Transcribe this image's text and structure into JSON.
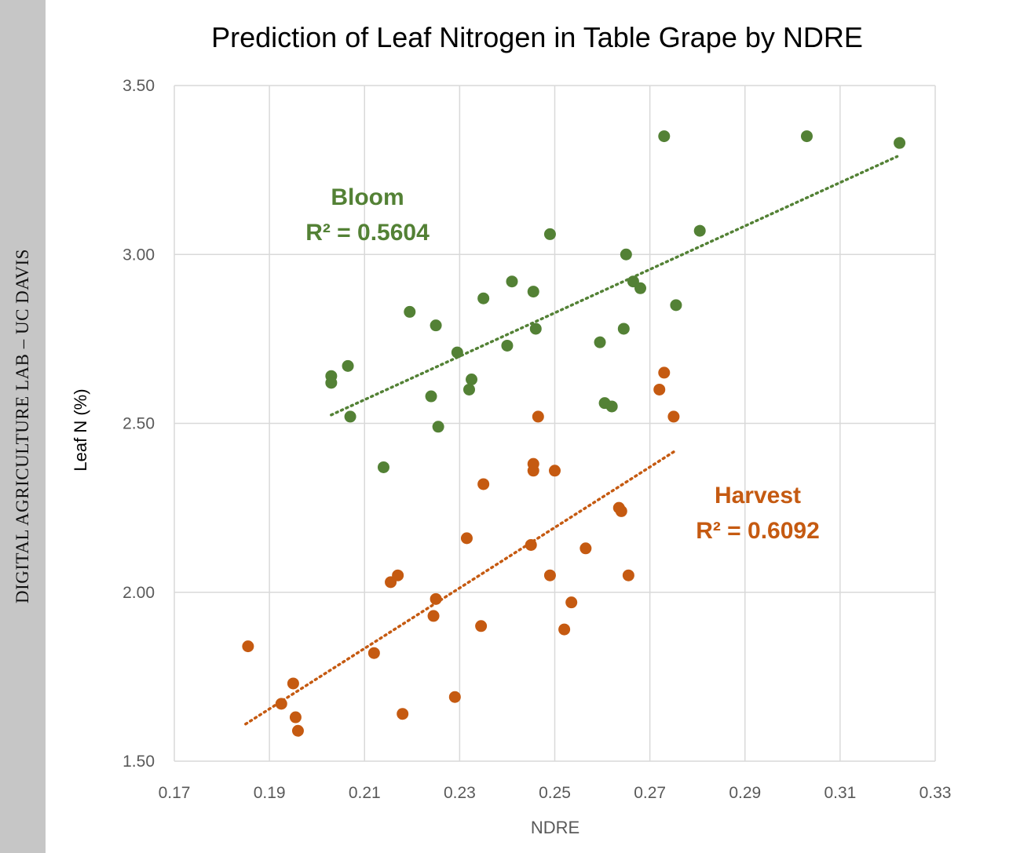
{
  "side_label": "DIGITAL AGRICULTURE LAB – UC DAVIS",
  "colors": {
    "bloom": "#538135",
    "harvest": "#C55A11",
    "grid": "#d9d9d9",
    "tick_text": "#595959"
  },
  "chart_data": {
    "type": "scatter",
    "title": "Prediction of Leaf Nitrogen in Table Grape by NDRE",
    "xlabel": "NDRE",
    "ylabel": "Leaf N (%)",
    "xlim": [
      0.17,
      0.33
    ],
    "ylim": [
      1.5,
      3.5
    ],
    "x_ticks": [
      "0.17",
      "0.19",
      "0.21",
      "0.23",
      "0.25",
      "0.27",
      "0.29",
      "0.31",
      "0.33"
    ],
    "y_ticks": [
      "3.50",
      "3.00",
      "2.50",
      "2.00",
      "1.50"
    ],
    "grid": true,
    "series": [
      {
        "name": "Bloom",
        "color": "#538135",
        "r_squared": "R² = 0.5604",
        "trendline": {
          "x": [
            0.203,
            0.322
          ],
          "y": [
            2.525,
            3.29
          ]
        },
        "points": [
          [
            0.203,
            2.64
          ],
          [
            0.203,
            2.62
          ],
          [
            0.2065,
            2.67
          ],
          [
            0.207,
            2.52
          ],
          [
            0.214,
            2.37
          ],
          [
            0.2195,
            2.83
          ],
          [
            0.224,
            2.58
          ],
          [
            0.225,
            2.79
          ],
          [
            0.2255,
            2.49
          ],
          [
            0.2295,
            2.71
          ],
          [
            0.232,
            2.6
          ],
          [
            0.2325,
            2.63
          ],
          [
            0.235,
            2.87
          ],
          [
            0.24,
            2.73
          ],
          [
            0.241,
            2.92
          ],
          [
            0.2455,
            2.89
          ],
          [
            0.246,
            2.78
          ],
          [
            0.249,
            3.06
          ],
          [
            0.2595,
            2.74
          ],
          [
            0.2605,
            2.56
          ],
          [
            0.262,
            2.55
          ],
          [
            0.2645,
            2.78
          ],
          [
            0.265,
            3.0
          ],
          [
            0.2665,
            2.92
          ],
          [
            0.268,
            2.9
          ],
          [
            0.273,
            3.35
          ],
          [
            0.2755,
            2.85
          ],
          [
            0.2805,
            3.07
          ],
          [
            0.303,
            3.35
          ],
          [
            0.3225,
            3.33
          ]
        ]
      },
      {
        "name": "Harvest",
        "color": "#C55A11",
        "r_squared": "R² = 0.6092",
        "trendline": {
          "x": [
            0.185,
            0.2755
          ],
          "y": [
            1.61,
            2.42
          ]
        },
        "points": [
          [
            0.1855,
            1.84
          ],
          [
            0.1925,
            1.67
          ],
          [
            0.195,
            1.73
          ],
          [
            0.1955,
            1.63
          ],
          [
            0.196,
            1.59
          ],
          [
            0.212,
            1.82
          ],
          [
            0.2155,
            2.03
          ],
          [
            0.217,
            2.05
          ],
          [
            0.218,
            1.64
          ],
          [
            0.2245,
            1.93
          ],
          [
            0.225,
            1.98
          ],
          [
            0.229,
            1.69
          ],
          [
            0.2315,
            2.16
          ],
          [
            0.2345,
            1.9
          ],
          [
            0.235,
            2.32
          ],
          [
            0.245,
            2.14
          ],
          [
            0.2455,
            2.38
          ],
          [
            0.2455,
            2.36
          ],
          [
            0.2465,
            2.52
          ],
          [
            0.249,
            2.05
          ],
          [
            0.25,
            2.36
          ],
          [
            0.252,
            1.89
          ],
          [
            0.2535,
            1.97
          ],
          [
            0.2565,
            2.13
          ],
          [
            0.2635,
            2.25
          ],
          [
            0.264,
            2.24
          ],
          [
            0.2655,
            2.05
          ],
          [
            0.272,
            2.6
          ],
          [
            0.273,
            2.65
          ],
          [
            0.275,
            2.52
          ]
        ]
      }
    ],
    "annotations": [
      {
        "series": "Bloom",
        "lines": [
          "Bloom",
          "R² = 0.5604"
        ]
      },
      {
        "series": "Harvest",
        "lines": [
          "Harvest",
          "R² = 0.6092"
        ]
      }
    ]
  }
}
